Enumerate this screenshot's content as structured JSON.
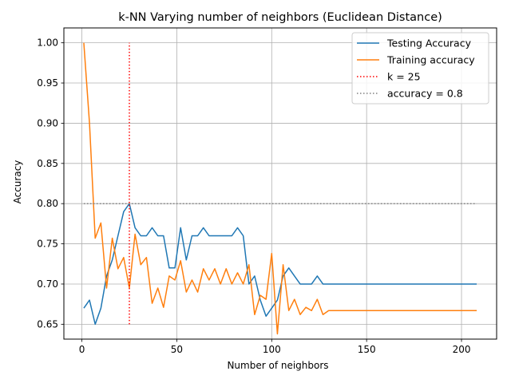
{
  "chart_data": {
    "type": "line",
    "title": "k-NN Varying number of neighbors (Euclidean Distance)",
    "xlabel": "Number of neighbors",
    "ylabel": "Accuracy",
    "xlim": [
      -9.5,
      218.5
    ],
    "ylim": [
      0.6315,
      1.0185
    ],
    "xticks": [
      0,
      50,
      100,
      150,
      200
    ],
    "yticks": [
      0.65,
      0.7,
      0.75,
      0.8,
      0.85,
      0.9,
      0.95,
      1.0
    ],
    "xtick_labels": [
      "0",
      "50",
      "100",
      "150",
      "200"
    ],
    "ytick_labels": [
      "0.65",
      "0.70",
      "0.75",
      "0.80",
      "0.85",
      "0.90",
      "0.95",
      "1.00"
    ],
    "grid": true,
    "legend_position": "upper right",
    "series": [
      {
        "name": "Testing Accuracy",
        "color": "#1f77b4",
        "style": "solid",
        "x": [
          1,
          4,
          7,
          10,
          13,
          16,
          19,
          22,
          25,
          28,
          31,
          34,
          37,
          40,
          43,
          46,
          49,
          52,
          55,
          58,
          61,
          64,
          67,
          70,
          73,
          76,
          79,
          82,
          85,
          88,
          91,
          94,
          97,
          100,
          103,
          106,
          109,
          112,
          115,
          118,
          121,
          124,
          127,
          130,
          208
        ],
        "y": [
          0.67,
          0.68,
          0.65,
          0.67,
          0.71,
          0.73,
          0.76,
          0.79,
          0.8,
          0.77,
          0.76,
          0.76,
          0.77,
          0.76,
          0.76,
          0.72,
          0.72,
          0.77,
          0.73,
          0.76,
          0.76,
          0.77,
          0.76,
          0.76,
          0.76,
          0.76,
          0.76,
          0.77,
          0.76,
          0.7,
          0.71,
          0.68,
          0.66,
          0.67,
          0.68,
          0.71,
          0.72,
          0.71,
          0.7,
          0.7,
          0.7,
          0.71,
          0.7,
          0.7,
          0.7
        ]
      },
      {
        "name": "Training accuracy",
        "color": "#ff7f0e",
        "style": "solid",
        "x": [
          1,
          4,
          7,
          10,
          13,
          16,
          19,
          22,
          25,
          28,
          31,
          34,
          37,
          40,
          43,
          46,
          49,
          52,
          55,
          58,
          61,
          64,
          67,
          70,
          73,
          76,
          79,
          82,
          85,
          88,
          91,
          94,
          97,
          100,
          103,
          106,
          109,
          112,
          115,
          118,
          121,
          124,
          127,
          130,
          208
        ],
        "y": [
          1.0,
          0.9,
          0.757,
          0.776,
          0.695,
          0.757,
          0.719,
          0.733,
          0.695,
          0.762,
          0.724,
          0.733,
          0.676,
          0.695,
          0.671,
          0.71,
          0.705,
          0.729,
          0.69,
          0.705,
          0.69,
          0.719,
          0.705,
          0.719,
          0.7,
          0.719,
          0.7,
          0.714,
          0.7,
          0.724,
          0.662,
          0.686,
          0.681,
          0.738,
          0.638,
          0.724,
          0.667,
          0.681,
          0.662,
          0.671,
          0.667,
          0.681,
          0.662,
          0.667,
          0.667
        ]
      },
      {
        "name": "k = 25",
        "color": "#ff0000",
        "style": "dotted",
        "x": [
          25,
          25
        ],
        "y": [
          0.65,
          1.0
        ]
      },
      {
        "name": "accuracy = 0.8",
        "color": "#808080",
        "style": "dotted",
        "x": [
          1,
          208
        ],
        "y": [
          0.8,
          0.8
        ]
      }
    ]
  }
}
